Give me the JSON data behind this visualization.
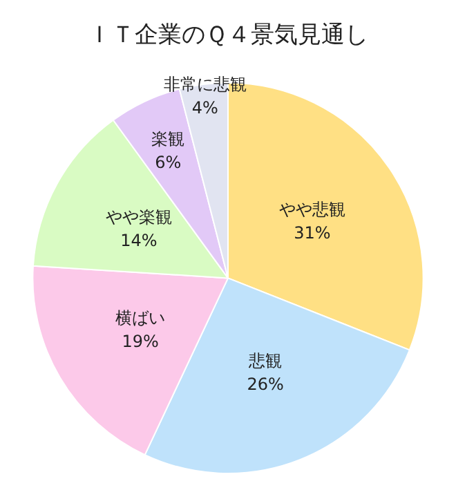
{
  "chart_data": {
    "type": "pie",
    "title": "ＩＴ企業のＱ４景気見通し",
    "categories": [
      "やや悲観",
      "悲観",
      "横ばい",
      "やや楽観",
      "楽観",
      "非常に悲観"
    ],
    "values": [
      31,
      26,
      19,
      14,
      6,
      4
    ],
    "value_labels": [
      "31%",
      "26%",
      "19%",
      "14%",
      "6%",
      "4%"
    ],
    "colors": [
      "#ffe084",
      "#bfe2fb",
      "#fcc9e9",
      "#d9fbc3",
      "#e2c9f7",
      "#e1e4f1"
    ],
    "legend": false
  }
}
